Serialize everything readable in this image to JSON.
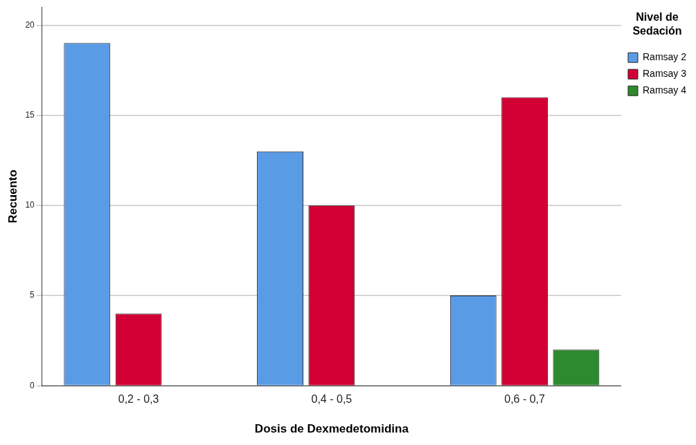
{
  "chart_data": {
    "type": "bar",
    "xlabel": "Dosis de Dexmedetomidina",
    "ylabel": "Recuento",
    "legend_title": "Nivel de Sedación",
    "categories": [
      "0,2 - 0,3",
      "0,4 - 0,5",
      "0,6 - 0,7"
    ],
    "series": [
      {
        "name": "Ramsay 2",
        "color": "#5a9be6",
        "values": [
          19,
          13,
          5
        ]
      },
      {
        "name": "Ramsay 3",
        "color": "#d20034",
        "values": [
          4,
          10,
          16
        ]
      },
      {
        "name": "Ramsay 4",
        "color": "#2e8a2e",
        "values": [
          null,
          null,
          2
        ]
      }
    ],
    "ylim": [
      0,
      21
    ],
    "yticks": [
      0,
      5,
      10,
      15,
      20
    ],
    "grid": "y",
    "legend": "top right"
  }
}
